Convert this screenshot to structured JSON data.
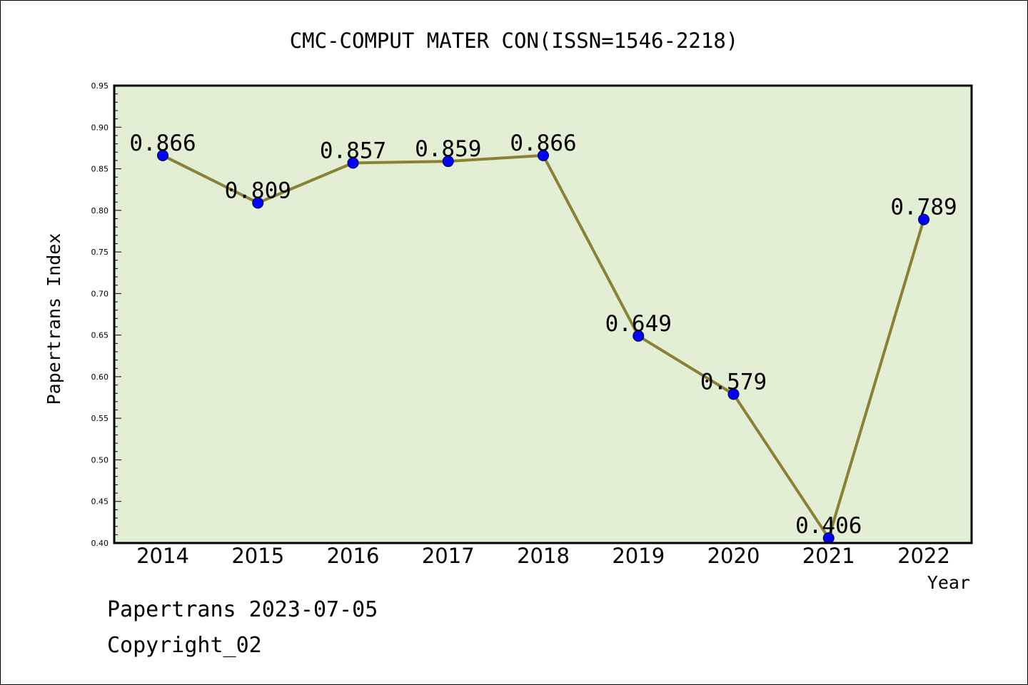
{
  "chart_data": {
    "type": "line",
    "title": "CMC-COMPUT MATER CON(ISSN=1546-2218)",
    "xlabel": "Year",
    "ylabel": "Papertrans Index",
    "categories": [
      "2014",
      "2015",
      "2016",
      "2017",
      "2018",
      "2019",
      "2020",
      "2021",
      "2022"
    ],
    "series": [
      {
        "values": [
          0.866,
          0.809,
          0.857,
          0.859,
          0.866,
          0.649,
          0.579,
          0.406,
          0.789
        ],
        "labels": [
          "0.866",
          "0.809",
          "0.857",
          "0.859",
          "0.866",
          "0.649",
          "0.579",
          "0.406",
          "0.789"
        ]
      }
    ],
    "ylim": [
      0.4,
      0.95
    ],
    "yticks": [
      "0.40",
      "0.45",
      "0.50",
      "0.55",
      "0.60",
      "0.65",
      "0.70",
      "0.75",
      "0.80",
      "0.85",
      "0.90",
      "0.95"
    ],
    "grid": false,
    "colors": {
      "plot_background": "#e2efd4",
      "line": "#8b8136",
      "marker": "#0000ff",
      "axis": "#000000"
    }
  },
  "footer": {
    "line1": "Papertrans 2023-07-05",
    "line2": "Copyright_02"
  }
}
